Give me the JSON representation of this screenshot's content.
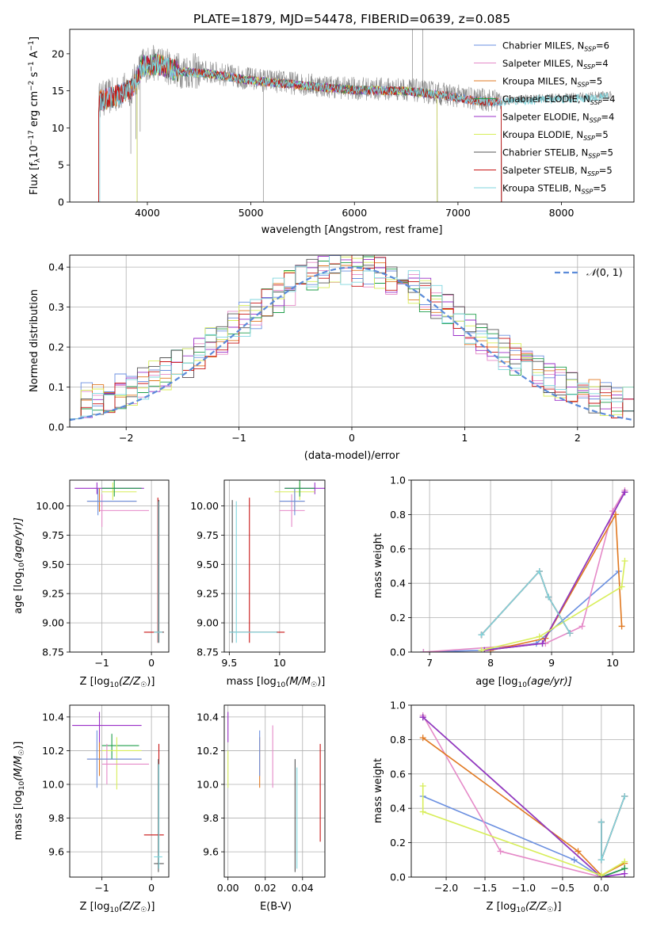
{
  "colors": {
    "Chabrier MILES": "#6a8fe0",
    "Salpeter MILES": "#e58ac8",
    "Kroupa MILES": "#e07820",
    "Chabrier ELODIE": "#1f9e4a",
    "Salpeter ELODIE": "#9b30c8",
    "Kroupa ELODIE": "#d8ee5a",
    "Chabrier STELIB": "#555555",
    "Salpeter STELIB": "#c81414",
    "Kroupa STELIB": "#7fd6de",
    "gauss": "#5b8bd9",
    "grid": "#b0b0b0"
  },
  "chart_data": [
    {
      "id": "spectrum",
      "type": "line",
      "title": "PLATE=1879, MJD=54478, FIBERID=0639, z=0.085",
      "xlabel": "wavelength [Angstrom, rest frame]",
      "ylabel_main": "Flux [f",
      "ylabel_sub": "λ",
      "ylabel_rest": "10",
      "ylabel_sup": "−17",
      "ylabel_tail": " erg cm",
      "ylabel_sup2": "−2",
      "ylabel_tail2": " s",
      "ylabel_sup3": "−1",
      "ylabel_tail3": " A",
      "ylabel_sup4": "−1",
      "ylabel_end": "]",
      "xlim": [
        3250,
        8700
      ],
      "ylim": [
        0,
        23.3
      ],
      "xticks": [
        4000,
        5000,
        6000,
        7000,
        8000
      ],
      "yticks": [
        0,
        5,
        10,
        15,
        20
      ],
      "grid": false,
      "legend_placement": "upper-right",
      "legend": [
        {
          "name": "Chabrier MILES",
          "nssp": "6"
        },
        {
          "name": "Salpeter MILES",
          "nssp": "4"
        },
        {
          "name": "Kroupa MILES",
          "nssp": "5"
        },
        {
          "name": "Chabrier ELODIE",
          "nssp": "4"
        },
        {
          "name": "Salpeter ELODIE",
          "nssp": "4"
        },
        {
          "name": "Kroupa ELODIE",
          "nssp": "5"
        },
        {
          "name": "Chabrier STELIB",
          "nssp": "5"
        },
        {
          "name": "Salpeter STELIB",
          "nssp": "5"
        },
        {
          "name": "Kroupa STELIB",
          "nssp": "5"
        }
      ],
      "nssp_label": "N",
      "nssp_sub": "SSP",
      "data_trend": [
        [
          3530,
          13.8
        ],
        [
          3700,
          14.5
        ],
        [
          3850,
          15.5
        ],
        [
          3950,
          18.5
        ],
        [
          4100,
          18.8
        ],
        [
          4300,
          17.8
        ],
        [
          4600,
          17.5
        ],
        [
          5000,
          16.6
        ],
        [
          5300,
          16.2
        ],
        [
          5600,
          15.8
        ],
        [
          6000,
          15.3
        ],
        [
          6500,
          15.2
        ],
        [
          6900,
          14.5
        ],
        [
          7200,
          13.8
        ],
        [
          7500,
          13.7
        ],
        [
          7800,
          14.0
        ],
        [
          8200,
          14.2
        ],
        [
          8480,
          14.5
        ]
      ],
      "spikes": [
        [
          3840,
          6.5
        ],
        [
          3930,
          9.5
        ],
        [
          5120,
          0.0
        ],
        [
          6560,
          23.3
        ],
        [
          6660,
          23.3
        ],
        [
          3890,
          8.5
        ]
      ]
    },
    {
      "id": "residuals",
      "type": "histogram",
      "xlabel": "(data-model)/error",
      "ylabel": "Normed distribution",
      "xlim": [
        -2.5,
        2.5
      ],
      "ylim": [
        0,
        0.43
      ],
      "xticks": [
        -2,
        -1,
        0,
        1,
        2
      ],
      "yticks": [
        0.0,
        0.1,
        0.2,
        0.3,
        0.4
      ],
      "grid": true,
      "legend_placement": "upper-right",
      "gauss_label_n": "𝒩",
      "gauss_label_args": "(0, 1)",
      "bin_width": 0.1
    },
    {
      "id": "age-vs-Z",
      "type": "errorbar",
      "xlabel_pre": "Z [log",
      "xlabel_sub": "10",
      "xlabel_post": "(Z/Z",
      "xlabel_sun": "☉",
      "xlabel_end": ")]",
      "ylabel_pre": "age  [log",
      "ylabel_sub": "10",
      "ylabel_post": "(age/yr)]",
      "xlim": [
        -1.65,
        0.35
      ],
      "ylim": [
        8.75,
        10.22
      ],
      "xticks": [
        -1,
        0
      ],
      "yticks": [
        8.75,
        9.0,
        9.25,
        9.5,
        9.75,
        10.0
      ],
      "grid": true
    },
    {
      "id": "age-vs-mass",
      "type": "errorbar",
      "xlabel_pre": "mass [log",
      "xlabel_sub": "10",
      "xlabel_post": "(M/M",
      "xlabel_sun": "☉",
      "xlabel_end": ")]",
      "xlim": [
        9.45,
        10.45
      ],
      "ylim": [
        8.75,
        10.22
      ],
      "xticks": [
        9.5,
        10.0
      ],
      "yticks": [
        8.75,
        9.0,
        9.25,
        9.5,
        9.75,
        10.0
      ],
      "grid": true
    },
    {
      "id": "massweight-vs-age",
      "type": "line",
      "xlabel_pre": "age  [log",
      "xlabel_sub": "10",
      "xlabel_post": "(age/yr)]",
      "ylabel": "mass weight",
      "xlim": [
        6.7,
        10.35
      ],
      "ylim": [
        0,
        1.0
      ],
      "xticks": [
        7,
        8,
        9,
        10
      ],
      "yticks": [
        0.0,
        0.2,
        0.4,
        0.6,
        0.8,
        1.0
      ],
      "grid": true,
      "series": [
        {
          "color": "Chabrier MILES",
          "x": [
            6.9,
            7.85,
            8.75,
            10.1
          ],
          "y": [
            0.0,
            0.01,
            0.05,
            0.47
          ]
        },
        {
          "color": "Salpeter MILES",
          "x": [
            6.9,
            8.9,
            9.5,
            10.0,
            10.2
          ],
          "y": [
            0.0,
            0.05,
            0.15,
            0.82,
            0.94
          ]
        },
        {
          "color": "Kroupa MILES",
          "x": [
            8.0,
            8.9,
            10.05,
            10.15
          ],
          "y": [
            0.01,
            0.08,
            0.8,
            0.15
          ]
        },
        {
          "color": "Chabrier ELODIE",
          "x": [
            7.9,
            8.85,
            10.2
          ],
          "y": [
            0.01,
            0.05,
            0.93
          ]
        },
        {
          "color": "Salpeter ELODIE",
          "x": [
            7.9,
            8.85,
            10.2
          ],
          "y": [
            0.01,
            0.05,
            0.93
          ]
        },
        {
          "color": "Kroupa ELODIE",
          "x": [
            7.85,
            8.8,
            10.15,
            10.2
          ],
          "y": [
            0.01,
            0.09,
            0.38,
            0.53
          ]
        },
        {
          "color": "Chabrier STELIB",
          "x": [
            7.85,
            8.8,
            8.95,
            9.3
          ],
          "y": [
            0.1,
            0.47,
            0.32,
            0.11
          ]
        },
        {
          "color": "Salpeter STELIB",
          "x": [
            7.85,
            8.8,
            8.95,
            9.3
          ],
          "y": [
            0.1,
            0.47,
            0.32,
            0.11
          ]
        },
        {
          "color": "Kroupa STELIB",
          "x": [
            7.85,
            8.8,
            8.95,
            9.3
          ],
          "y": [
            0.1,
            0.47,
            0.32,
            0.11
          ]
        }
      ]
    },
    {
      "id": "mass-vs-Z",
      "type": "errorbar",
      "xlabel_pre": "Z [log",
      "xlabel_sub": "10",
      "xlabel_post": "(Z/Z",
      "xlabel_sun": "☉",
      "xlabel_end": ")]",
      "ylabel_pre": "mass [log",
      "ylabel_sub": "10",
      "ylabel_post": "(M/M",
      "ylabel_sun": "☉",
      "ylabel_end": ")]",
      "xlim": [
        -1.65,
        0.35
      ],
      "ylim": [
        9.45,
        10.47
      ],
      "xticks": [
        -1,
        0
      ],
      "yticks": [
        9.6,
        9.8,
        10.0,
        10.2,
        10.4
      ],
      "grid": true
    },
    {
      "id": "mass-vs-EBV",
      "type": "errorbar",
      "xlabel": "E(B-V)",
      "xlim": [
        -0.002,
        0.052
      ],
      "ylim": [
        9.45,
        10.47
      ],
      "xticks": [
        0.0,
        0.02,
        0.04
      ],
      "xtick_labels": [
        "0.00",
        "0.02",
        "0.04"
      ],
      "yticks": [
        9.6,
        9.8,
        10.0,
        10.2,
        10.4
      ],
      "grid": true
    },
    {
      "id": "massweight-vs-Z",
      "type": "line",
      "xlabel_pre": "Z [log",
      "xlabel_sub": "10",
      "xlabel_post": "(Z/Z",
      "xlabel_sun": "☉",
      "xlabel_end": ")]",
      "ylabel": "mass weight",
      "xlim": [
        -2.45,
        0.42
      ],
      "ylim": [
        0,
        1.0
      ],
      "xticks": [
        -2.0,
        -1.5,
        -1.0,
        -0.5,
        0.0
      ],
      "xtick_labels": [
        "−2.0",
        "−1.5",
        "−1.0",
        "−0.5",
        "0.0"
      ],
      "yticks": [
        0.0,
        0.2,
        0.4,
        0.6,
        0.8,
        1.0
      ],
      "grid": true,
      "series": [
        {
          "color": "Chabrier MILES",
          "x": [
            -2.3,
            -0.35,
            0.0,
            0.3
          ],
          "y": [
            0.47,
            0.1,
            0.0,
            0.05
          ]
        },
        {
          "color": "Salpeter MILES",
          "x": [
            -2.3,
            -1.3,
            0.0,
            0.3
          ],
          "y": [
            0.94,
            0.15,
            0.0,
            0.05
          ]
        },
        {
          "color": "Kroupa MILES",
          "x": [
            -2.3,
            -0.3,
            0.0,
            0.3
          ],
          "y": [
            0.81,
            0.15,
            0.01,
            0.08
          ]
        },
        {
          "color": "Chabrier ELODIE",
          "x": [
            -2.3,
            0.0,
            0.3
          ],
          "y": [
            0.93,
            0.0,
            0.05
          ]
        },
        {
          "color": "Salpeter ELODIE",
          "x": [
            -2.3,
            0.0,
            0.3
          ],
          "y": [
            0.93,
            0.0,
            0.02
          ]
        },
        {
          "color": "Kroupa ELODIE",
          "x": [
            -2.3,
            -2.3,
            0.0,
            0.3
          ],
          "y": [
            0.53,
            0.38,
            0.01,
            0.09
          ]
        },
        {
          "color": "Chabrier STELIB",
          "x": [
            0.0,
            0.0,
            0.3
          ],
          "y": [
            0.32,
            0.1,
            0.47
          ]
        },
        {
          "color": "Salpeter STELIB",
          "x": [
            0.0,
            0.0,
            0.3
          ],
          "y": [
            0.32,
            0.1,
            0.47
          ]
        },
        {
          "color": "Kroupa STELIB",
          "x": [
            0.0,
            0.0,
            0.3
          ],
          "y": [
            0.32,
            0.1,
            0.47
          ]
        }
      ]
    }
  ]
}
